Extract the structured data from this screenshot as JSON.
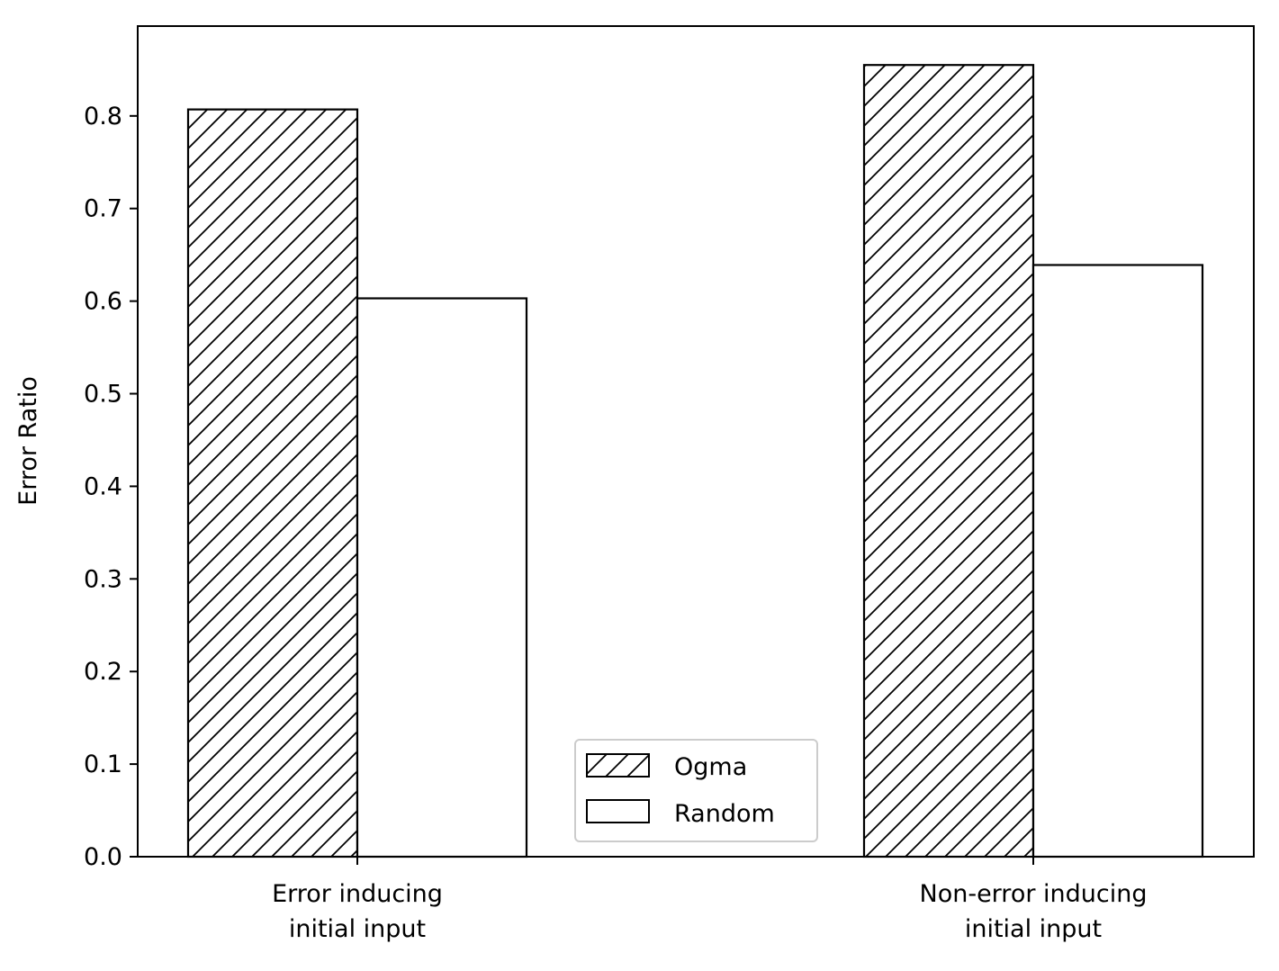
{
  "chart_data": {
    "type": "bar",
    "title": "",
    "xlabel": "",
    "ylabel": "Error Ratio",
    "categories": [
      [
        "Error inducing",
        "initial input"
      ],
      [
        "Non-error inducing",
        "initial input"
      ]
    ],
    "series": [
      {
        "name": "Ogma",
        "values": [
          0.807,
          0.855
        ],
        "pattern": "hatch",
        "fill": "#ffffff",
        "edge": "#000000"
      },
      {
        "name": "Random",
        "values": [
          0.603,
          0.639
        ],
        "pattern": "none",
        "fill": "#ffffff",
        "edge": "#000000"
      }
    ],
    "ylim": [
      0.0,
      0.897
    ],
    "yticks": [
      0.0,
      0.1,
      0.2,
      0.3,
      0.4,
      0.5,
      0.6,
      0.7,
      0.8
    ],
    "ytick_labels": [
      "0.0",
      "0.1",
      "0.2",
      "0.3",
      "0.4",
      "0.5",
      "0.6",
      "0.7",
      "0.8"
    ],
    "grid": false,
    "legend": {
      "placement": "lower-center"
    }
  }
}
